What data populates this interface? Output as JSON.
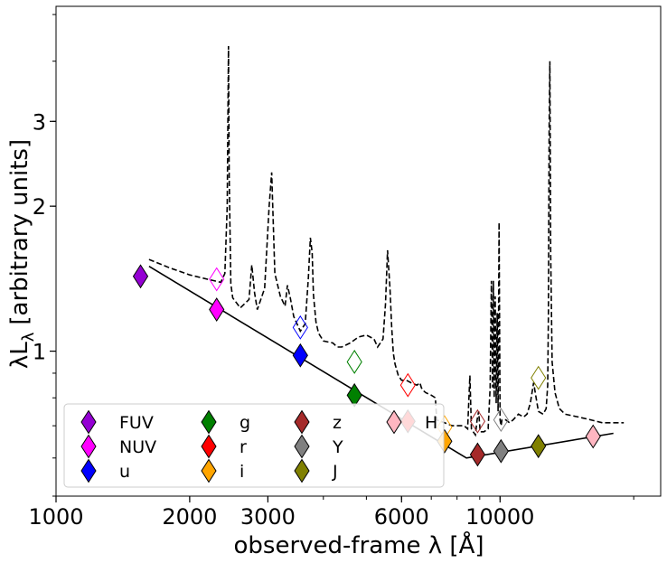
{
  "chart_data": {
    "type": "scatter",
    "xlabel": "observed-frame λ [Å]",
    "ylabel_main": "λL",
    "ylabel_sub": "λ",
    "ylabel_units": "[arbitrary units]",
    "xscale": "log",
    "yscale": "log",
    "xlim": [
      1000,
      23000
    ],
    "ylim": [
      0.5,
      5.2
    ],
    "xticks": [
      {
        "value": 1000,
        "label": "1000"
      },
      {
        "value": 2000,
        "label": "2000"
      },
      {
        "value": 3000,
        "label": "3000"
      },
      {
        "value": 6000,
        "label": "6000"
      },
      {
        "value": 10000,
        "label": "10000"
      }
    ],
    "yticks": [
      {
        "value": 1,
        "label": "1"
      },
      {
        "value": 2,
        "label": "2"
      },
      {
        "value": 3,
        "label": "3"
      }
    ],
    "series": [
      {
        "name": "FUV",
        "color": "#9400d3",
        "x": 1550,
        "y": 1.43,
        "x_open": null,
        "y_open": null
      },
      {
        "name": "NUV",
        "color": "#ff00ff",
        "x": 2300,
        "y": 1.22,
        "x_open": 2300,
        "y_open": 1.41
      },
      {
        "name": "u",
        "color": "#0000ff",
        "x": 3550,
        "y": 0.98,
        "x_open": 3550,
        "y_open": 1.12
      },
      {
        "name": "g",
        "color": "#008000",
        "x": 4700,
        "y": 0.81,
        "x_open": 4700,
        "y_open": 0.95
      },
      {
        "name": "r",
        "color": "#ff0000",
        "x": 6200,
        "y": 0.715,
        "x_open": 6200,
        "y_open": 0.85
      },
      {
        "name": "i",
        "color": "#ffa500",
        "x": 7500,
        "y": 0.65,
        "x_open": 7500,
        "y_open": 0.695
      },
      {
        "name": "z",
        "color": "#a52a2a",
        "x": 8900,
        "y": 0.61,
        "x_open": 8900,
        "y_open": 0.715
      },
      {
        "name": "Y",
        "color": "#808080",
        "x": 10050,
        "y": 0.62,
        "x_open": 10050,
        "y_open": 0.72
      },
      {
        "name": "J",
        "color": "#808000",
        "x": 12200,
        "y": 0.635,
        "x_open": 12200,
        "y_open": 0.88
      },
      {
        "name": "H",
        "color": "#ffb6c1",
        "x": 16200,
        "y": 0.665,
        "x_open": 16200,
        "y_open": null
      }
    ],
    "continuum_line": {
      "style": "solid",
      "x": [
        1620,
        8400,
        18000
      ],
      "y": [
        1.5,
        0.6,
        0.675
      ]
    },
    "spectrum_line": {
      "style": "dashed",
      "x": [
        1620,
        1800,
        2000,
        2200,
        2350,
        2400,
        2430,
        2445,
        2455,
        2475,
        2500,
        2600,
        2720,
        2760,
        2800,
        2840,
        2950,
        3020,
        3060,
        3110,
        3200,
        3280,
        3320,
        3370,
        3430,
        3550,
        3640,
        3700,
        3740,
        3775,
        3800,
        3850,
        3900,
        4000,
        4200,
        4300,
        4400,
        4600,
        4800,
        5000,
        5200,
        5300,
        5450,
        5520,
        5580,
        5650,
        5700,
        5750,
        5800,
        5900,
        6000,
        6150,
        6300,
        6500,
        6600,
        6650,
        6700,
        6800,
        7000,
        7150,
        7200,
        7500,
        7800,
        8100,
        8300,
        8450,
        8550,
        8620,
        8700,
        8800,
        8880,
        8950,
        9020,
        9200,
        9400,
        9500,
        9560,
        9620,
        9660,
        9700,
        9750,
        9800,
        9850,
        9900,
        9950,
        10000,
        10050,
        10100,
        10300,
        10500,
        10700,
        11000,
        11300,
        11500,
        11700,
        11900,
        12200,
        12500,
        12700,
        12800,
        12850,
        12900,
        12950,
        13000,
        13100,
        13300,
        13600,
        14000,
        15000,
        16000,
        17000,
        18000,
        19000
      ],
      "y": [
        1.55,
        1.49,
        1.44,
        1.41,
        1.39,
        1.45,
        2.0,
        4.3,
        2.3,
        1.38,
        1.29,
        1.23,
        1.28,
        1.51,
        1.32,
        1.22,
        1.35,
        2.0,
        2.35,
        1.45,
        1.3,
        1.24,
        1.37,
        1.29,
        1.18,
        1.1,
        1.14,
        1.42,
        1.72,
        1.6,
        1.31,
        1.15,
        1.09,
        1.05,
        1.04,
        1.02,
        1.02,
        1.04,
        1.07,
        1.08,
        1.06,
        1.02,
        1.06,
        1.25,
        1.62,
        1.35,
        1.12,
        0.99,
        0.94,
        0.89,
        0.87,
        0.87,
        0.86,
        0.85,
        0.86,
        0.84,
        0.83,
        0.82,
        0.81,
        0.8,
        0.72,
        0.71,
        0.7,
        0.7,
        0.7,
        0.69,
        0.89,
        0.69,
        0.68,
        0.67,
        0.72,
        0.75,
        0.68,
        0.68,
        0.69,
        0.84,
        1.4,
        0.84,
        1.4,
        0.8,
        1.3,
        0.78,
        1.2,
        0.75,
        1.85,
        0.72,
        0.7,
        0.72,
        0.72,
        0.71,
        0.72,
        0.74,
        0.73,
        0.74,
        0.78,
        0.86,
        0.75,
        0.74,
        0.76,
        0.85,
        1.2,
        2.9,
        4.0,
        1.6,
        0.95,
        0.82,
        0.76,
        0.74,
        0.73,
        0.72,
        0.71,
        0.71,
        0.71
      ]
    },
    "legend": {
      "placement": "lower-left",
      "columns": 4,
      "entries": [
        "FUV",
        "NUV",
        "u",
        "g",
        "r",
        "i",
        "z",
        "Y",
        "J",
        "H"
      ]
    }
  }
}
